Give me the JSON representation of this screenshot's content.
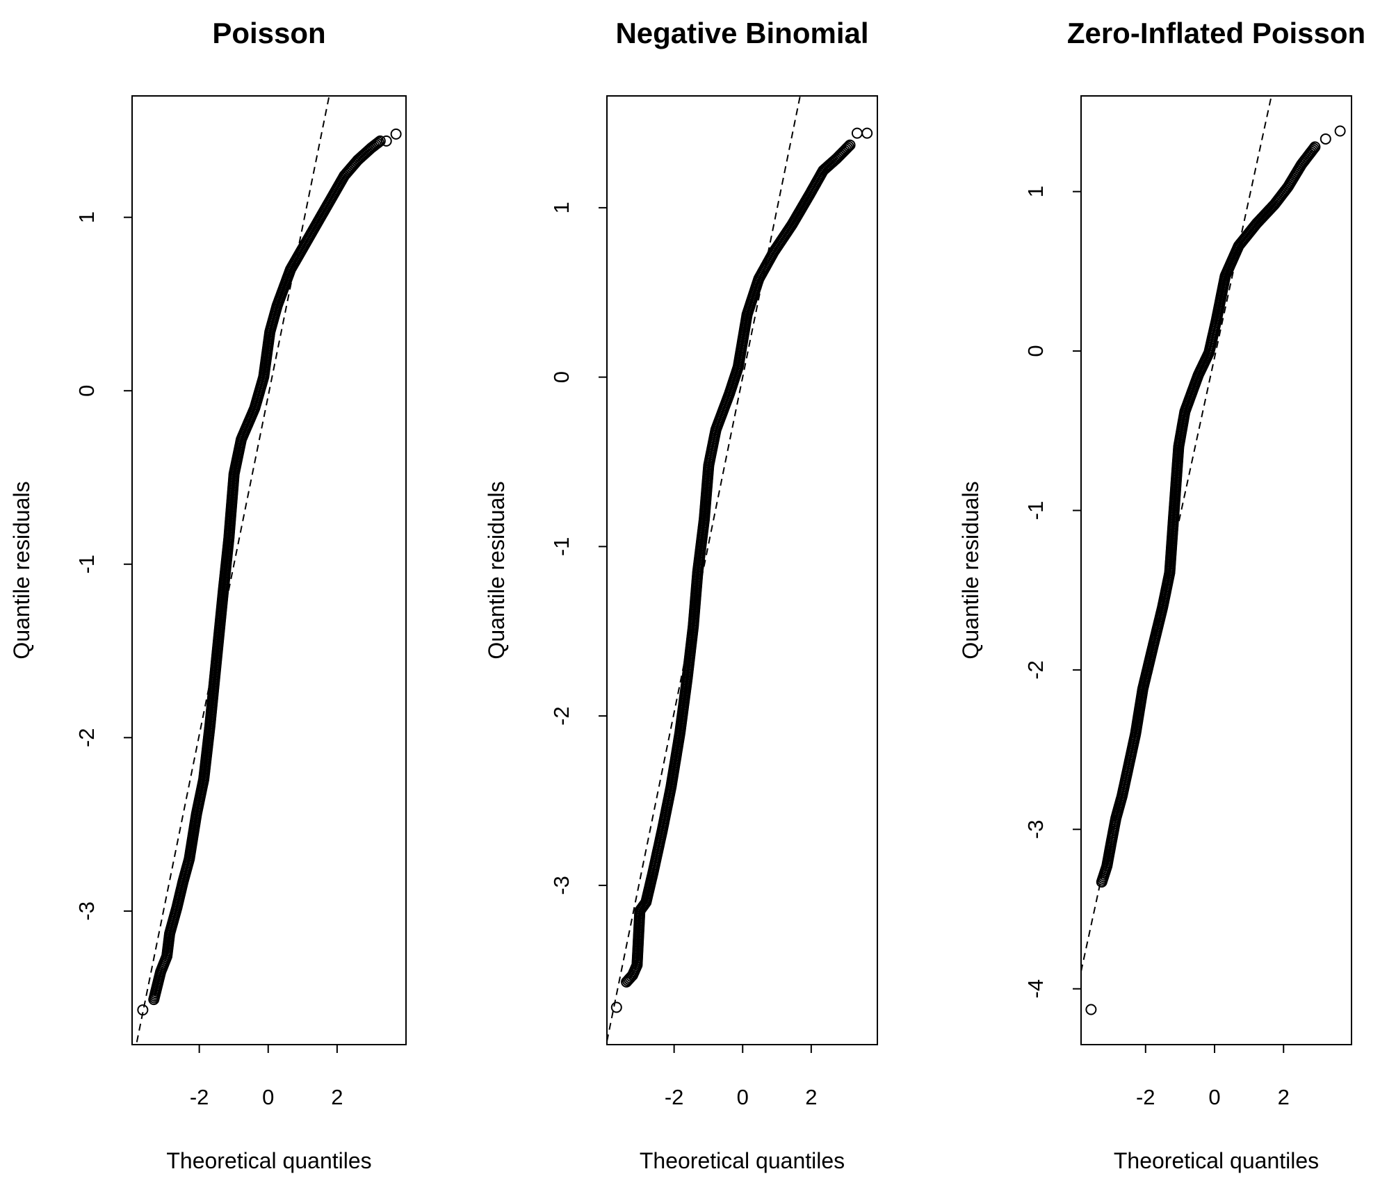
{
  "chart_data": [
    {
      "type": "scatter",
      "title": "Poisson",
      "xlabel": "Theoretical quantiles",
      "ylabel": "Quantile residuals",
      "xlim": [
        -3.95,
        4.0
      ],
      "ylim": [
        -3.77,
        1.7
      ],
      "xticks": [
        -2,
        0,
        2
      ],
      "yticks": [
        -3,
        -2,
        -1,
        0,
        1
      ],
      "grid": false,
      "reference_line": {
        "slope": 0.977,
        "intercept": -0.03,
        "style": "dashed"
      },
      "points": [
        [
          -3.64,
          -3.57
        ],
        [
          -3.32,
          -3.51
        ],
        [
          -3.12,
          -3.35
        ],
        [
          -2.94,
          -3.26
        ],
        [
          -2.86,
          -3.13
        ],
        [
          -2.65,
          -2.98
        ],
        [
          -2.47,
          -2.83
        ],
        [
          -2.29,
          -2.7
        ],
        [
          -2.08,
          -2.44
        ],
        [
          -1.87,
          -2.24
        ],
        [
          -1.69,
          -1.93
        ],
        [
          -1.51,
          -1.57
        ],
        [
          -1.3,
          -1.15
        ],
        [
          -1.14,
          -0.85
        ],
        [
          -0.99,
          -0.48
        ],
        [
          -0.78,
          -0.28
        ],
        [
          -0.39,
          -0.1
        ],
        [
          -0.13,
          0.08
        ],
        [
          0.05,
          0.34
        ],
        [
          0.26,
          0.49
        ],
        [
          0.65,
          0.7
        ],
        [
          1.17,
          0.88
        ],
        [
          1.69,
          1.06
        ],
        [
          2.21,
          1.24
        ],
        [
          2.6,
          1.33
        ],
        [
          2.99,
          1.4
        ],
        [
          3.25,
          1.44
        ],
        [
          3.43,
          1.44
        ],
        [
          3.71,
          1.48
        ]
      ]
    },
    {
      "type": "scatter",
      "title": "Negative Binomial",
      "xlabel": "Theoretical quantiles",
      "ylabel": "Quantile residuals",
      "xlim": [
        -3.96,
        3.93
      ],
      "ylim": [
        -3.94,
        1.66
      ],
      "xticks": [
        -2,
        0,
        2
      ],
      "yticks": [
        -3,
        -2,
        -1,
        0,
        1
      ],
      "grid": false,
      "reference_line": {
        "slope": 0.99,
        "intercept": 0.0,
        "style": "dashed"
      },
      "points": [
        [
          -3.68,
          -3.72
        ],
        [
          -3.39,
          -3.57
        ],
        [
          -3.21,
          -3.53
        ],
        [
          -3.08,
          -3.47
        ],
        [
          -3.0,
          -3.15
        ],
        [
          -2.82,
          -3.1
        ],
        [
          -2.61,
          -2.92
        ],
        [
          -2.35,
          -2.68
        ],
        [
          -2.09,
          -2.42
        ],
        [
          -1.83,
          -2.1
        ],
        [
          -1.62,
          -1.78
        ],
        [
          -1.44,
          -1.47
        ],
        [
          -1.31,
          -1.15
        ],
        [
          -1.12,
          -0.84
        ],
        [
          -0.99,
          -0.52
        ],
        [
          -0.78,
          -0.31
        ],
        [
          -0.39,
          -0.1
        ],
        [
          -0.13,
          0.06
        ],
        [
          0.13,
          0.37
        ],
        [
          0.47,
          0.58
        ],
        [
          0.91,
          0.74
        ],
        [
          1.44,
          0.9
        ],
        [
          1.96,
          1.08
        ],
        [
          2.35,
          1.22
        ],
        [
          2.74,
          1.29
        ],
        [
          3.13,
          1.37
        ],
        [
          3.34,
          1.44
        ],
        [
          3.63,
          1.44
        ]
      ]
    },
    {
      "type": "scatter",
      "title": "Zero-Inflated Poisson",
      "xlabel": "Theoretical quantiles",
      "ylabel": "Quantile residuals",
      "xlim": [
        -3.87,
        3.97
      ],
      "ylim": [
        -4.35,
        1.6
      ],
      "xticks": [
        -2,
        0,
        2
      ],
      "yticks": [
        -4,
        -3,
        -2,
        -1,
        0,
        1
      ],
      "grid": false,
      "reference_line": {
        "slope": 0.995,
        "intercept": -0.04,
        "style": "dashed"
      },
      "points": [
        [
          -3.58,
          -4.13
        ],
        [
          -3.27,
          -3.33
        ],
        [
          -3.12,
          -3.23
        ],
        [
          -3.01,
          -3.1
        ],
        [
          -2.86,
          -2.93
        ],
        [
          -2.68,
          -2.79
        ],
        [
          -2.49,
          -2.6
        ],
        [
          -2.29,
          -2.4
        ],
        [
          -2.08,
          -2.12
        ],
        [
          -1.77,
          -1.84
        ],
        [
          -1.51,
          -1.61
        ],
        [
          -1.3,
          -1.39
        ],
        [
          -1.19,
          -1.05
        ],
        [
          -1.04,
          -0.6
        ],
        [
          -0.86,
          -0.38
        ],
        [
          -0.47,
          -0.15
        ],
        [
          -0.16,
          -0.01
        ],
        [
          0.05,
          0.19
        ],
        [
          0.31,
          0.47
        ],
        [
          0.7,
          0.66
        ],
        [
          1.22,
          0.8
        ],
        [
          1.74,
          0.92
        ],
        [
          2.13,
          1.03
        ],
        [
          2.52,
          1.17
        ],
        [
          2.91,
          1.28
        ],
        [
          3.22,
          1.33
        ],
        [
          3.64,
          1.38
        ]
      ]
    }
  ]
}
